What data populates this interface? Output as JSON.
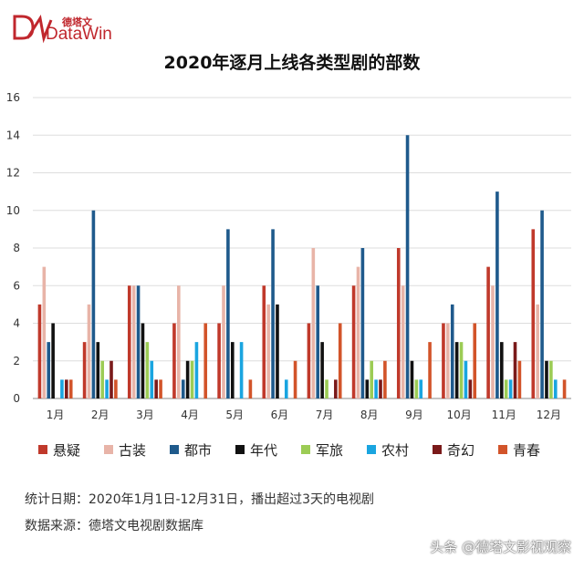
{
  "logo": {
    "cn": "德塔文",
    "en": "DataWin"
  },
  "notes": {
    "stats": "统计日期：2020年1月1日-12月31日，播出超过3天的电视剧",
    "source": "数据来源：德塔文电视剧数据库"
  },
  "watermark": "头条 @德塔文影视观察",
  "chart_data": {
    "type": "bar",
    "title": "2020年逐月上线各类型剧的部数",
    "categories": [
      "1月",
      "2月",
      "3月",
      "4月",
      "5月",
      "6月",
      "7月",
      "8月",
      "9月",
      "10月",
      "11月",
      "12月"
    ],
    "ylim": [
      0,
      16
    ],
    "yticks": [
      0,
      2,
      4,
      6,
      8,
      10,
      12,
      14,
      16
    ],
    "grid": true,
    "legend_position": "bottom",
    "series": [
      {
        "name": "悬疑",
        "color": "#c0392b",
        "values": [
          5,
          3,
          6,
          4,
          4,
          6,
          4,
          6,
          8,
          4,
          7,
          9
        ]
      },
      {
        "name": "古装",
        "color": "#e8b4a8",
        "values": [
          7,
          5,
          6,
          6,
          6,
          5,
          8,
          7,
          6,
          4,
          6,
          5
        ]
      },
      {
        "name": "都市",
        "color": "#1f5a8c",
        "values": [
          3,
          10,
          6,
          1,
          9,
          9,
          6,
          8,
          14,
          5,
          11,
          10
        ]
      },
      {
        "name": "年代",
        "color": "#111111",
        "values": [
          4,
          3,
          4,
          2,
          3,
          5,
          3,
          1,
          2,
          3,
          3,
          2
        ]
      },
      {
        "name": "军旅",
        "color": "#9ccc55",
        "values": [
          0,
          2,
          3,
          2,
          0,
          0,
          1,
          2,
          1,
          3,
          1,
          2
        ]
      },
      {
        "name": "农村",
        "color": "#1aa5e0",
        "values": [
          1,
          1,
          2,
          3,
          3,
          1,
          0,
          1,
          1,
          2,
          1,
          1
        ]
      },
      {
        "name": "奇幻",
        "color": "#7a1a1a",
        "values": [
          1,
          2,
          1,
          0,
          0,
          0,
          1,
          1,
          0,
          1,
          3,
          0
        ]
      },
      {
        "name": "青春",
        "color": "#d2542a",
        "values": [
          1,
          1,
          1,
          4,
          1,
          2,
          4,
          2,
          3,
          4,
          2,
          1
        ]
      }
    ]
  }
}
